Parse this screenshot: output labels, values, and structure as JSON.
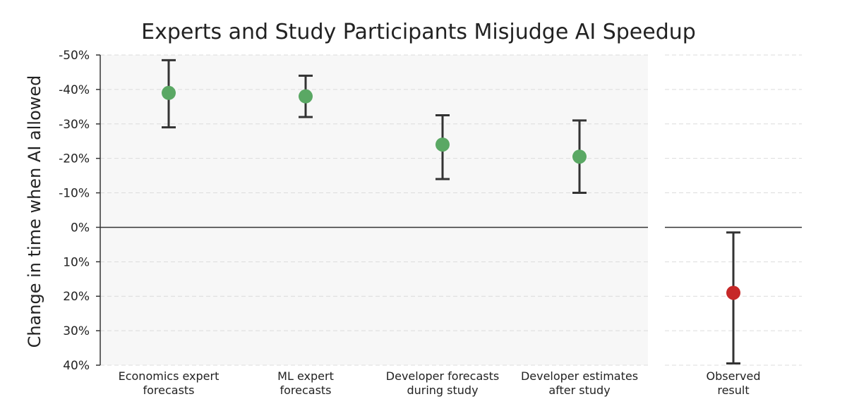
{
  "chart_data": {
    "type": "scatter",
    "title": "Experts and Study Participants Misjudge AI Speedup",
    "ylabel": "Change in time when AI allowed",
    "xlabel": "",
    "ylim": [
      -50,
      40
    ],
    "y_axis_inverted": true,
    "yticks": [
      -50,
      -40,
      -30,
      -20,
      -10,
      0,
      10,
      20,
      30,
      40
    ],
    "ytick_labels": [
      "-50%",
      "-40%",
      "-30%",
      "-20%",
      "-10%",
      "0%",
      "10%",
      "20%",
      "30%",
      "40%"
    ],
    "grid": true,
    "panels": [
      {
        "name": "forecasts",
        "background": "#f7f7f7",
        "categories": [
          {
            "lines": [
              "Economics expert",
              "forecasts"
            ],
            "value": -39,
            "low": -48.5,
            "high": -29
          },
          {
            "lines": [
              "ML expert",
              "forecasts"
            ],
            "value": -38,
            "low": -44,
            "high": -32
          },
          {
            "lines": [
              "Developer forecasts",
              "during study"
            ],
            "value": -24,
            "low": -32.5,
            "high": -14
          },
          {
            "lines": [
              "Developer estimates",
              "after study"
            ],
            "value": -20.5,
            "low": -31,
            "high": -10
          }
        ],
        "color": "#5aa864"
      },
      {
        "name": "observed",
        "background": "#ffffff",
        "categories": [
          {
            "lines": [
              "Observed",
              "result"
            ],
            "value": 19,
            "low": 1.5,
            "high": 39.5
          }
        ],
        "color": "#c62828"
      }
    ]
  }
}
